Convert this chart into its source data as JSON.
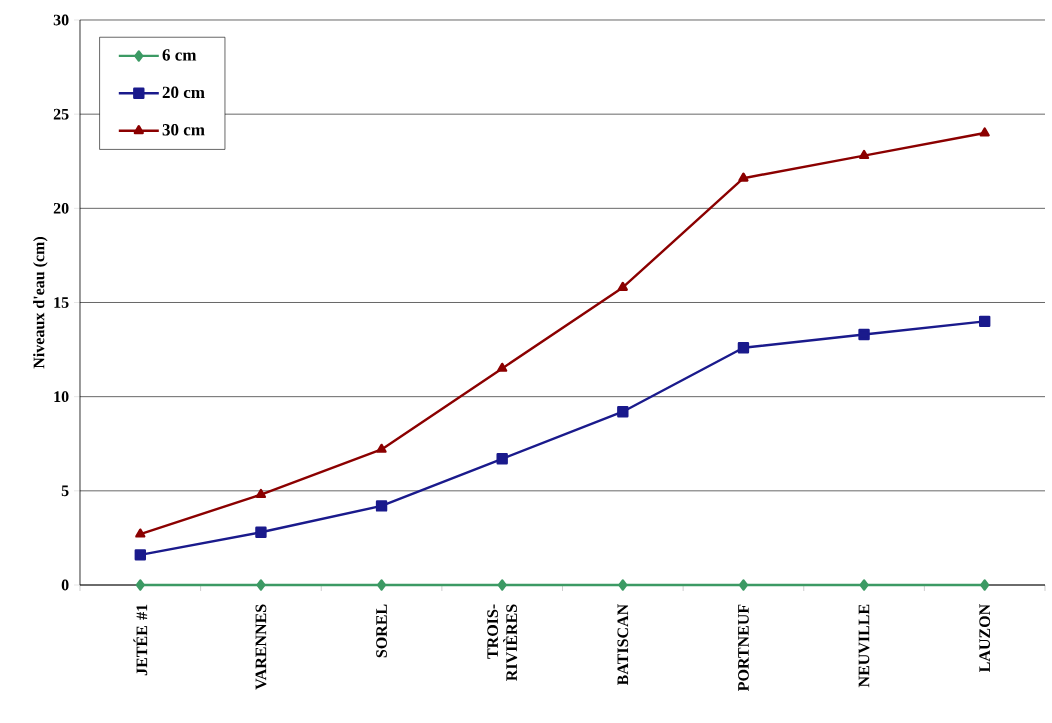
{
  "chart_data": {
    "type": "line",
    "ylabel": "Niveaux d'eau (cm)",
    "categories": [
      "JETÉE #1",
      "VARENNES",
      "SOREL",
      "TROIS-RIVIÈRES",
      "BATISCAN",
      "PORTNEUF",
      "NEUVILLE",
      "LAUZON"
    ],
    "series": [
      {
        "name": "6 cm",
        "color": "#3c9a64",
        "marker": "diamond",
        "values": [
          0,
          0,
          0,
          0,
          0,
          0,
          0,
          0
        ]
      },
      {
        "name": "20 cm",
        "color": "#1a1a8c",
        "marker": "square",
        "values": [
          1.6,
          2.8,
          4.2,
          6.7,
          9.2,
          12.6,
          13.3,
          14.0
        ]
      },
      {
        "name": "30 cm",
        "color": "#8b0000",
        "marker": "triangle",
        "values": [
          2.7,
          4.8,
          7.2,
          11.5,
          15.8,
          21.6,
          22.8,
          24.0
        ]
      }
    ],
    "ylim": [
      0,
      30
    ],
    "yticks": [
      0,
      5,
      10,
      15,
      20,
      25,
      30
    ],
    "grid": "y",
    "legend": "top left"
  }
}
